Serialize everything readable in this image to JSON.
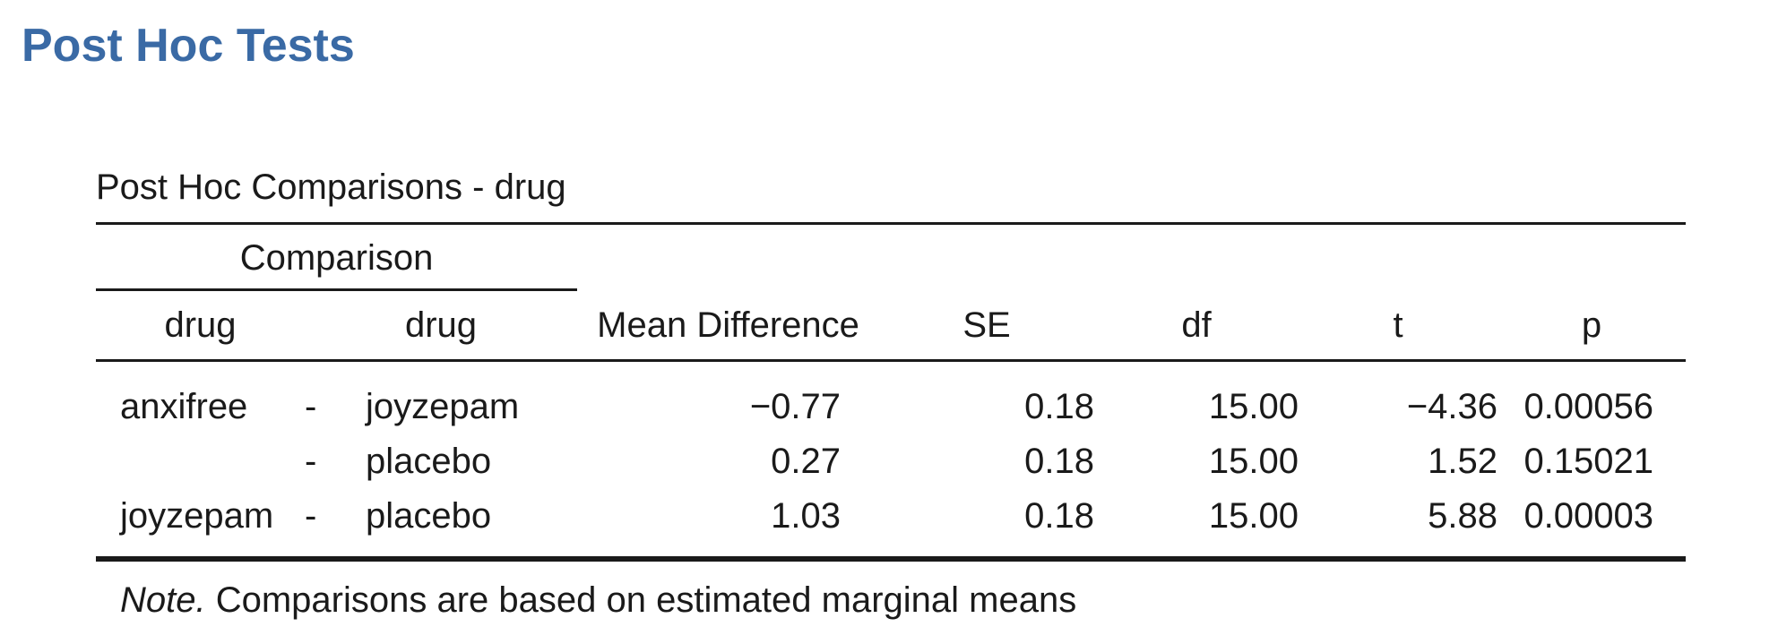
{
  "page": {
    "title": "Post Hoc Tests"
  },
  "table": {
    "title": "Post Hoc Comparisons - drug",
    "group_header": "Comparison",
    "columns": [
      "drug",
      "drug",
      "Mean Difference",
      "SE",
      "df",
      "t",
      "p"
    ],
    "rows": [
      {
        "drug1": "anxifree",
        "sep": "-",
        "drug2": "joyzepam",
        "mean_difference": "−0.77",
        "se": "0.18",
        "df": "15.00",
        "t": "−4.36",
        "p": "0.00056"
      },
      {
        "drug1": "",
        "sep": "-",
        "drug2": "placebo",
        "mean_difference": "0.27",
        "se": "0.18",
        "df": "15.00",
        "t": "1.52",
        "p": "0.15021"
      },
      {
        "drug1": "joyzepam",
        "sep": "-",
        "drug2": "placebo",
        "mean_difference": "1.03",
        "se": "0.18",
        "df": "15.00",
        "t": "5.88",
        "p": "0.00003"
      }
    ],
    "note_label": "Note.",
    "note_text": " Comparisons are based on estimated marginal means"
  }
}
